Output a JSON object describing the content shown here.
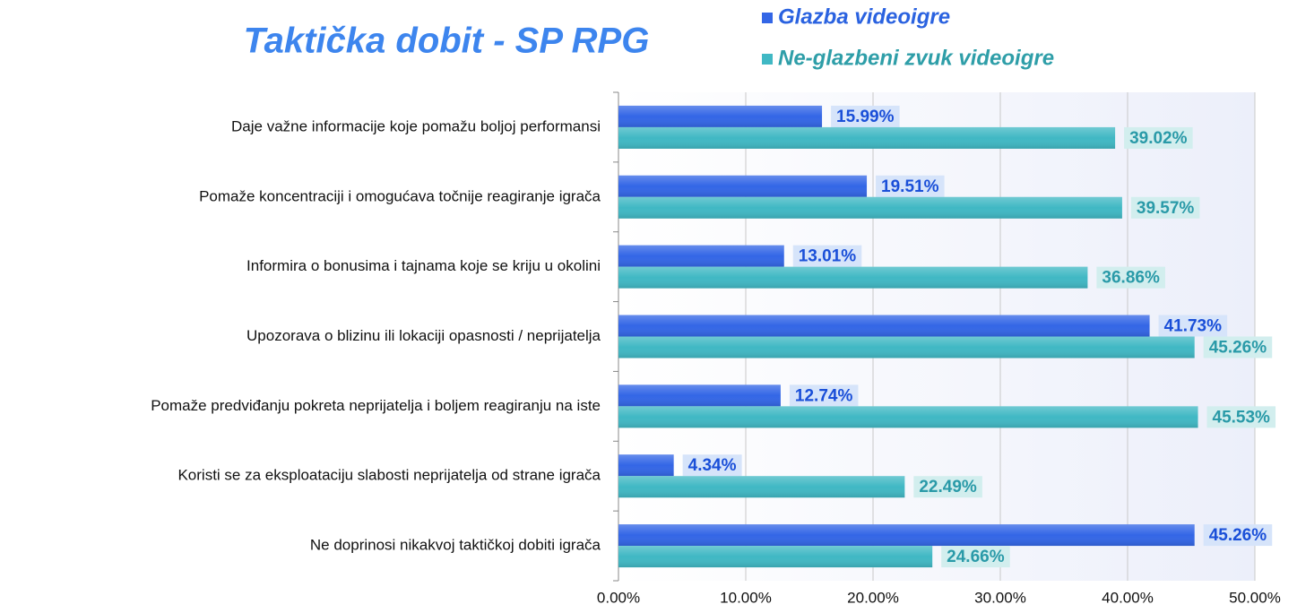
{
  "chart_data": {
    "type": "hbar",
    "title": "Taktička dobit - SP RPG",
    "categories": [
      "Daje važne informacije koje pomažu boljoj performansi",
      "Pomaže koncentraciji i omogućava točnije reagiranje igrača",
      "Informira o bonusima i tajnama koje se kriju u okolini",
      "Upozorava o blizinu ili lokaciji opasnosti / neprijatelja",
      "Pomaže predviđanju pokreta neprijatelja i boljem reagiranju na iste",
      "Koristi se za eksploataciju slabosti neprijatelja od strane igrača",
      "Ne doprinosi nikakvoj taktičkoj dobiti igrača"
    ],
    "series": [
      {
        "name": "Glazba videoigre",
        "color": "#3366e6",
        "values": [
          15.99,
          19.51,
          13.01,
          41.73,
          12.74,
          4.34,
          45.26
        ],
        "value_labels": [
          "15.99%",
          "19.51%",
          "13.01%",
          "41.73%",
          "12.74%",
          "4.34%",
          "45.26%"
        ]
      },
      {
        "name": "Ne-glazbeni zvuk videoigre",
        "color": "#40b8c4",
        "values": [
          39.02,
          39.57,
          36.86,
          45.26,
          45.53,
          22.49,
          24.66
        ],
        "value_labels": [
          "39.02%",
          "39.57%",
          "36.86%",
          "45.26%",
          "45.53%",
          "22.49%",
          "24.66%"
        ]
      }
    ],
    "xlim": [
      0,
      50
    ],
    "xticks": [
      {
        "value": 0,
        "label": "0.00%"
      },
      {
        "value": 10,
        "label": "10.00%"
      },
      {
        "value": 20,
        "label": "20.00%"
      },
      {
        "value": 30,
        "label": "30.00%"
      },
      {
        "value": 40,
        "label": "40.00%"
      },
      {
        "value": 50,
        "label": "50.00%"
      }
    ],
    "grid": true,
    "legend": "top"
  }
}
